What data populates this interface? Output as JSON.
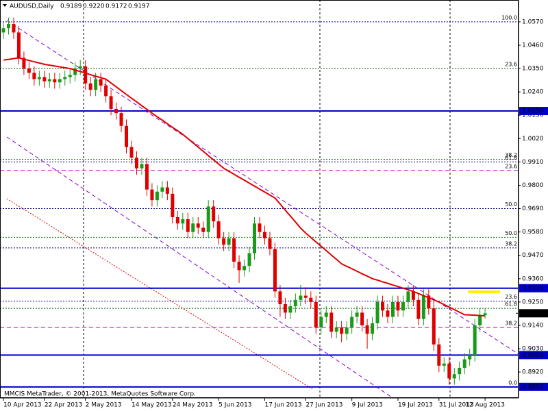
{
  "chart_data": {
    "type": "candlestick",
    "title": "AUDUSD,Daily",
    "ohlc_labels": [
      "0.9189",
      "0.9220",
      "0.9172",
      "0.9197"
    ],
    "footer": "MMCIS MetaTrader, © 2001-2013, MetaQuotes Software Corp.",
    "categories": [
      "10 Apr 2013",
      null,
      null,
      null,
      null,
      null,
      null,
      null,
      "22 Apr 2013",
      null,
      null,
      null,
      null,
      null,
      null,
      null,
      "2 May 2013",
      null,
      null,
      null,
      null,
      null,
      null,
      null,
      null,
      "14 May 2013",
      null,
      null,
      null,
      null,
      null,
      null,
      null,
      "24 May 2013",
      null,
      null,
      null,
      null,
      null,
      null,
      null,
      null,
      "5 Jun 2013",
      null,
      null,
      null,
      null,
      null,
      null,
      null,
      null,
      "17 Jun 2013",
      null,
      null,
      null,
      null,
      null,
      null,
      null,
      "27 Jun 2013",
      null,
      null,
      null,
      null,
      null,
      null,
      null,
      null,
      "9 Jul 2013",
      null,
      null,
      null,
      null,
      null,
      null,
      null,
      null,
      "19 Jul 2013",
      null,
      null,
      null,
      null,
      null,
      null,
      null,
      "31 Jul 2013",
      null,
      null,
      null,
      null,
      null,
      null,
      null,
      null,
      "12 Aug 2013"
    ],
    "open": [
      1.052,
      1.054,
      1.056,
      1.052,
      1.04,
      1.035,
      1.033,
      1.03,
      1.031,
      1.029,
      1.03,
      1.0285,
      1.03,
      1.031,
      1.032,
      1.035,
      1.036,
      1.028,
      1.025,
      1.03,
      1.027,
      1.022,
      1.016,
      1.014,
      1.008,
      0.998,
      0.993,
      0.988,
      0.99,
      0.978,
      0.973,
      0.977,
      0.979,
      0.976,
      0.965,
      0.962,
      0.964,
      0.958,
      0.962,
      0.96,
      0.958,
      0.97,
      0.963,
      0.955,
      0.952,
      0.955,
      0.944,
      0.94,
      0.942,
      0.948,
      0.962,
      0.958,
      0.955,
      0.95,
      0.93,
      0.924,
      0.92,
      0.923,
      0.926,
      0.928,
      0.927,
      0.925,
      0.913,
      0.918,
      0.92,
      0.911,
      0.913,
      0.91,
      0.913,
      0.918,
      0.92,
      0.914,
      0.91,
      0.915,
      0.925,
      0.921,
      0.918,
      0.925,
      0.921,
      0.925,
      0.93,
      0.926,
      0.917,
      0.928,
      0.922,
      0.905,
      0.895,
      0.896,
      0.889,
      0.891,
      0.894,
      0.898,
      0.9,
      0.914,
      0.9189
    ],
    "high": [
      1.057,
      1.059,
      1.059,
      1.055,
      1.043,
      1.038,
      1.036,
      1.034,
      1.034,
      1.033,
      1.033,
      1.033,
      1.034,
      1.035,
      1.038,
      1.039,
      1.039,
      1.031,
      1.033,
      1.033,
      1.03,
      1.025,
      1.019,
      1.017,
      1.011,
      1.001,
      0.996,
      0.993,
      0.993,
      0.981,
      0.98,
      0.982,
      0.982,
      0.979,
      0.968,
      0.967,
      0.967,
      0.965,
      0.965,
      0.963,
      0.973,
      0.973,
      0.966,
      0.958,
      0.958,
      0.958,
      0.947,
      0.945,
      0.951,
      0.965,
      0.965,
      0.961,
      0.958,
      0.953,
      0.933,
      0.927,
      0.926,
      0.929,
      0.933,
      0.932,
      0.93,
      0.928,
      0.921,
      0.923,
      0.923,
      0.916,
      0.916,
      0.916,
      0.921,
      0.923,
      0.923,
      0.917,
      0.918,
      0.928,
      0.928,
      0.924,
      0.928,
      0.928,
      0.928,
      0.933,
      0.933,
      0.929,
      0.931,
      0.931,
      0.925,
      0.908,
      0.899,
      0.899,
      0.894,
      0.897,
      0.901,
      0.903,
      0.917,
      0.922,
      0.922
    ],
    "low": [
      1.049,
      1.051,
      1.049,
      1.037,
      1.032,
      1.03,
      1.027,
      1.027,
      1.026,
      1.026,
      1.0255,
      1.0255,
      1.027,
      1.028,
      1.029,
      1.032,
      1.025,
      1.022,
      1.022,
      1.024,
      1.019,
      1.013,
      1.011,
      1.005,
      0.995,
      0.99,
      0.985,
      0.985,
      0.975,
      0.97,
      0.97,
      0.974,
      0.973,
      0.962,
      0.959,
      0.959,
      0.955,
      0.955,
      0.957,
      0.955,
      0.955,
      0.96,
      0.952,
      0.949,
      0.949,
      0.941,
      0.934,
      0.937,
      0.939,
      0.945,
      0.955,
      0.952,
      0.947,
      0.927,
      0.918,
      0.917,
      0.917,
      0.92,
      0.923,
      0.924,
      0.922,
      0.91,
      0.91,
      0.915,
      0.908,
      0.908,
      0.906,
      0.907,
      0.91,
      0.915,
      0.911,
      0.903,
      0.907,
      0.912,
      0.918,
      0.915,
      0.915,
      0.918,
      0.918,
      0.922,
      0.923,
      0.914,
      0.914,
      0.919,
      0.902,
      0.892,
      0.892,
      0.886,
      0.886,
      0.888,
      0.891,
      0.895,
      0.897,
      0.911,
      0.9172
    ],
    "close": [
      1.054,
      1.056,
      1.052,
      1.04,
      1.035,
      1.033,
      1.03,
      1.031,
      1.029,
      1.03,
      1.0285,
      1.03,
      1.031,
      1.032,
      1.035,
      1.036,
      1.028,
      1.025,
      1.03,
      1.027,
      1.022,
      1.016,
      1.014,
      1.008,
      0.998,
      0.993,
      0.988,
      0.99,
      0.978,
      0.973,
      0.977,
      0.979,
      0.976,
      0.965,
      0.962,
      0.964,
      0.958,
      0.962,
      0.96,
      0.958,
      0.97,
      0.963,
      0.955,
      0.952,
      0.955,
      0.944,
      0.94,
      0.942,
      0.948,
      0.962,
      0.958,
      0.955,
      0.95,
      0.93,
      0.924,
      0.92,
      0.923,
      0.926,
      0.928,
      0.927,
      0.925,
      0.913,
      0.918,
      0.92,
      0.911,
      0.913,
      0.91,
      0.913,
      0.918,
      0.92,
      0.914,
      0.91,
      0.915,
      0.925,
      0.921,
      0.918,
      0.925,
      0.921,
      0.925,
      0.93,
      0.926,
      0.917,
      0.928,
      0.922,
      0.905,
      0.895,
      0.896,
      0.889,
      0.891,
      0.894,
      0.898,
      0.9,
      0.914,
      0.919,
      0.9197
    ],
    "up_color": "#1a9a1a",
    "down_color": "#e00000",
    "ma": {
      "color": "#e00000",
      "values": [
        1.039,
        1.0393,
        1.0397,
        1.04,
        1.0394,
        1.0388,
        1.0382,
        1.0376,
        1.037,
        1.0366,
        1.0362,
        1.0358,
        1.0354,
        1.035,
        1.0343,
        1.0336,
        1.0329,
        1.0321,
        1.0314,
        1.0307,
        1.03,
        1.0282,
        1.0264,
        1.0246,
        1.0228,
        1.021,
        1.0193,
        1.0175,
        1.0158,
        1.014,
        1.0123,
        1.0107,
        1.009,
        1.0073,
        1.0057,
        1.004,
        1.002,
        1.0,
        0.998,
        0.996,
        0.994,
        0.992,
        0.99,
        0.988,
        0.9866,
        0.9852,
        0.9838,
        0.9824,
        0.981,
        0.9796,
        0.9782,
        0.9768,
        0.9754,
        0.974,
        0.9712,
        0.9683,
        0.9655,
        0.9627,
        0.9598,
        0.9575,
        0.9554,
        0.9533,
        0.9513,
        0.9492,
        0.9471,
        0.9451,
        0.943,
        0.9418,
        0.9407,
        0.9395,
        0.9383,
        0.9372,
        0.936,
        0.9353,
        0.9345,
        0.9338,
        0.933,
        0.9323,
        0.9315,
        0.9308,
        0.93,
        0.929,
        0.928,
        0.927,
        0.926,
        0.925,
        0.9238,
        0.9226,
        0.9214,
        0.9202,
        0.919,
        0.9189,
        0.9188,
        0.9186,
        0.9185
      ]
    },
    "ylim": [
      0.8801,
      1.0673
    ],
    "yticks": [
      {
        "value": 1.057,
        "label": "1.0570"
      },
      {
        "value": 1.046,
        "label": "1.0460"
      },
      {
        "value": 1.035,
        "label": "1.0350"
      },
      {
        "value": 1.024,
        "label": "1.0240"
      },
      {
        "value": 1.013,
        "label": "1.0130"
      },
      {
        "value": 1.002,
        "label": "1.0020"
      },
      {
        "value": 0.991,
        "label": "0.9910"
      },
      {
        "value": 0.98,
        "label": "0.9800"
      },
      {
        "value": 0.969,
        "label": "0.9690"
      },
      {
        "value": 0.958,
        "label": "0.9580"
      },
      {
        "value": 0.947,
        "label": "0.9470"
      },
      {
        "value": 0.936,
        "label": "0.9360"
      },
      {
        "value": 0.925,
        "label": "0.9250"
      },
      {
        "value": 0.914,
        "label": "0.9140"
      },
      {
        "value": 0.903,
        "label": "0.9030"
      },
      {
        "value": 0.892,
        "label": "0.8920"
      }
    ],
    "grid": false,
    "levels": [
      {
        "value": 1.015,
        "label": "1.0150"
      },
      {
        "value": 0.9315,
        "label": "0.9315"
      },
      {
        "value": 0.9,
        "label": "0.9000"
      },
      {
        "value": 0.885,
        "label": "0.8850"
      }
    ],
    "level_color": "#0000cc",
    "price": {
      "value": 0.9197,
      "label": "0.9197"
    },
    "fib_levels": [
      {
        "value": 1.057,
        "label": "100.0",
        "color": "#000080",
        "style": "dotted"
      },
      {
        "value": 1.035,
        "label": "23.6",
        "color": "#006400",
        "style": "dotted"
      },
      {
        "value": 0.9922,
        "label": "38.2",
        "color": "#006400",
        "style": "dotted"
      },
      {
        "value": 0.991,
        "label": "61.8",
        "color": "#000080",
        "style": "dotted"
      },
      {
        "value": 0.987,
        "label": "23.6",
        "color": "#cc00cc",
        "style": "dashed"
      },
      {
        "value": 0.969,
        "label": "50.0",
        "color": "#000080",
        "style": "dotted"
      },
      {
        "value": 0.9555,
        "label": "50.0",
        "color": "#006400",
        "style": "dotted"
      },
      {
        "value": 0.9505,
        "label": "38.2",
        "color": "#000080",
        "style": "dotted"
      },
      {
        "value": 0.9254,
        "label": "23.6",
        "color": "#000080",
        "style": "dotted"
      },
      {
        "value": 0.922,
        "label": "61.8",
        "color": "#006400",
        "style": "dotted"
      },
      {
        "value": 0.913,
        "label": "38.2",
        "color": "#cc00cc",
        "style": "dashed"
      },
      {
        "value": 0.885,
        "label": "0.0",
        "color": "#000080",
        "style": "dotted"
      }
    ]
  }
}
